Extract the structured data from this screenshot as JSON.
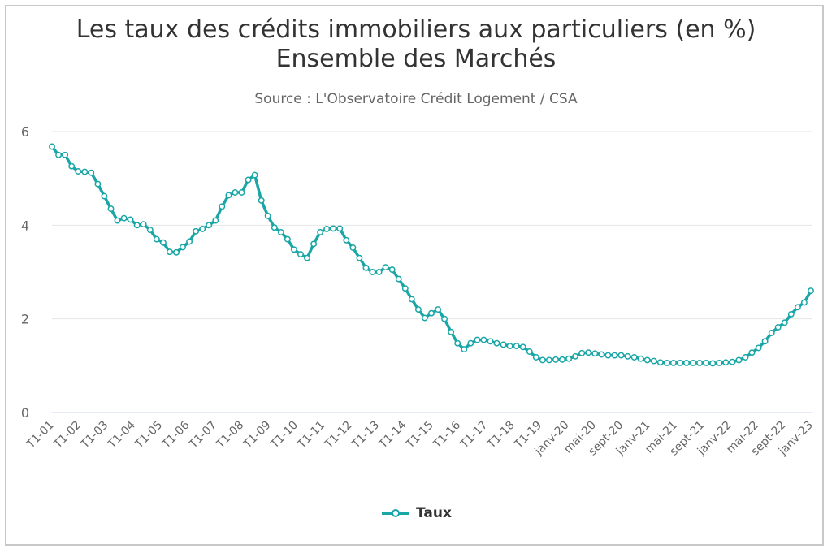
{
  "title_line1": "Les taux des crédits immobiliers aux particuliers (en %)",
  "title_line2": "Ensemble des Marchés",
  "subtitle": "Source : L'Observatoire Crédit Logement / CSA",
  "colors": {
    "series": "#1aa6a6",
    "grid": "#e6e6e6",
    "text": "#333333",
    "axis": "#666666"
  },
  "legend": {
    "label": "Taux",
    "icon": "line-marker-icon"
  },
  "chart_data": {
    "type": "line",
    "title": "Les taux des crédits immobiliers aux particuliers (en %) Ensemble des Marchés",
    "subtitle": "Source : L'Observatoire Crédit Logement / CSA",
    "xlabel": "",
    "ylabel": "",
    "ylim": [
      0,
      6
    ],
    "y_ticks": [
      0,
      2,
      4,
      6
    ],
    "grid": true,
    "legend_position": "bottom-center",
    "x_tick_labels": [
      "T1-01",
      "T1-02",
      "T1-03",
      "T1-04",
      "T1-05",
      "T1-06",
      "T1-07",
      "T1-08",
      "T1-09",
      "T1-10",
      "T1-11",
      "T1-12",
      "T1-13",
      "T1-14",
      "T1-15",
      "T1-16",
      "T1-17",
      "T1-18",
      "T1-19",
      "janv-20",
      "mai-20",
      "sept-20",
      "janv-21",
      "mai-21",
      "sept-21",
      "janv-22",
      "mai-22",
      "sept-22",
      "janv-23"
    ],
    "series": [
      {
        "name": "Taux",
        "values": [
          5.68,
          5.5,
          5.5,
          5.26,
          5.15,
          5.14,
          5.12,
          4.88,
          4.62,
          4.35,
          4.1,
          4.15,
          4.12,
          4.0,
          4.02,
          3.9,
          3.7,
          3.63,
          3.43,
          3.42,
          3.53,
          3.65,
          3.87,
          3.92,
          4.0,
          4.1,
          4.4,
          4.64,
          4.7,
          4.7,
          4.97,
          5.07,
          4.53,
          4.2,
          3.95,
          3.85,
          3.7,
          3.48,
          3.38,
          3.3,
          3.6,
          3.85,
          3.92,
          3.93,
          3.93,
          3.68,
          3.52,
          3.3,
          3.09,
          3.0,
          3.0,
          3.1,
          3.05,
          2.85,
          2.65,
          2.42,
          2.2,
          2.02,
          2.12,
          2.2,
          2.0,
          1.72,
          1.48,
          1.35,
          1.48,
          1.55,
          1.55,
          1.52,
          1.48,
          1.45,
          1.42,
          1.42,
          1.4,
          1.3,
          1.18,
          1.12,
          1.12,
          1.13,
          1.13,
          1.15,
          1.2,
          1.27,
          1.28,
          1.26,
          1.24,
          1.22,
          1.22,
          1.22,
          1.2,
          1.18,
          1.15,
          1.12,
          1.1,
          1.07,
          1.06,
          1.06,
          1.06,
          1.06,
          1.06,
          1.06,
          1.06,
          1.05,
          1.06,
          1.07,
          1.08,
          1.12,
          1.18,
          1.28,
          1.38,
          1.52,
          1.7,
          1.82,
          1.92,
          2.1,
          2.25,
          2.35,
          2.6
        ]
      }
    ]
  }
}
